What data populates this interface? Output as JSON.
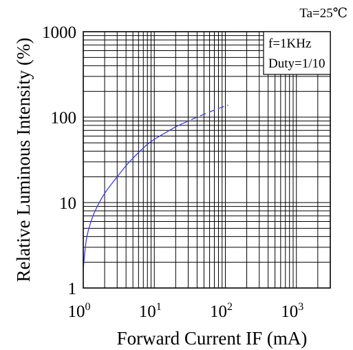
{
  "chart_data": {
    "type": "line",
    "title": "",
    "corner_label": "Ta=25℃",
    "xlabel": "Forward Current IF (mA)",
    "ylabel": "Relative Luminous Intensity (%)",
    "x_scale": "log",
    "y_scale": "log",
    "xlim": [
      1,
      3000
    ],
    "ylim": [
      1,
      1000
    ],
    "x_ticks": [
      {
        "value": 1,
        "base": "10",
        "exp": "0"
      },
      {
        "value": 10,
        "base": "10",
        "exp": "1"
      },
      {
        "value": 100,
        "base": "10",
        "exp": "2"
      },
      {
        "value": 1000,
        "base": "10",
        "exp": "3"
      }
    ],
    "y_ticks": [
      {
        "value": 1,
        "label": "1"
      },
      {
        "value": 10,
        "label": "10"
      },
      {
        "value": 100,
        "label": "100"
      },
      {
        "value": 1000,
        "label": "1000"
      }
    ],
    "grid": true,
    "annotation_lines": [
      "f=1KHz",
      "Duty=1/10"
    ],
    "series": [
      {
        "color": "#3a3af0",
        "style": "solid",
        "points": [
          [
            1.0,
            1.7
          ],
          [
            1.1,
            3.6
          ],
          [
            1.25,
            5.6
          ],
          [
            1.5,
            8.3
          ],
          [
            2,
            12.8
          ],
          [
            3,
            20
          ],
          [
            4,
            27
          ],
          [
            5,
            33
          ],
          [
            6,
            38.5
          ],
          [
            8,
            48
          ],
          [
            10,
            55
          ],
          [
            15,
            67
          ],
          [
            20,
            77
          ],
          [
            25,
            84
          ]
        ]
      },
      {
        "color": "#3a3af0",
        "style": "dashed",
        "points": [
          [
            25,
            84
          ],
          [
            30,
            90
          ],
          [
            40,
            100
          ],
          [
            50,
            108
          ],
          [
            70,
            121
          ],
          [
            100,
            135
          ],
          [
            110,
            138
          ]
        ]
      }
    ]
  }
}
